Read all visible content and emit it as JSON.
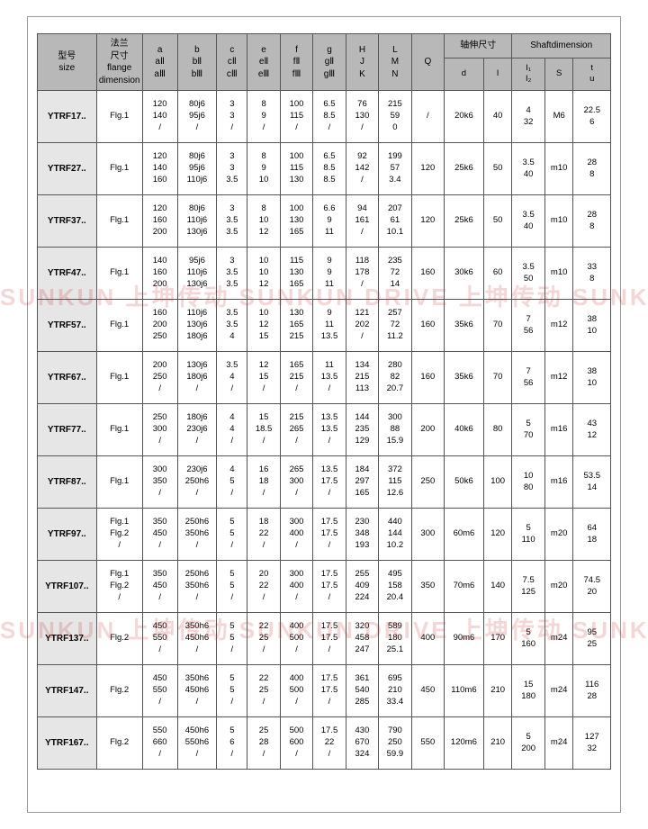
{
  "watermark": "SUNKUN 上坤传动 SUNKUN DRIVE 上坤传动 SUNKUN",
  "headers": {
    "size": "型号\nsize",
    "flange": "法兰\n尺寸\nflange\ndimension",
    "a": "a\naⅡ\naⅢ",
    "b": "b\nbⅡ\nbⅢ",
    "c": "c\ncⅡ\ncⅢ",
    "e": "e\neⅡ\neⅢ",
    "f": "f\nfⅡ\nfⅢ",
    "g": "g\ngⅡ\ngⅢ",
    "H": "H\nJ\nK",
    "L": "L\nM\nN",
    "Q": "Q",
    "shaft_ext": "轴伸尺寸",
    "shaft_dim": "Shaftdimension",
    "d": "d",
    "I": "I",
    "I12": "I₁\nI₂",
    "S": "S",
    "tu": "t\nu"
  },
  "rows": [
    {
      "size": "YTRF17..",
      "flange": "Flg.1",
      "a": "120\n140\n/",
      "b": "80j6\n95j6\n/",
      "c": "3\n3\n/",
      "e": "8\n9\n/",
      "f": "100\n115\n/",
      "g": "6.5\n8.5\n/",
      "H": "76\n130\n/",
      "L": "215\n59\n0",
      "Q": "/",
      "d": "20k6",
      "I": "40",
      "I12": "4\n32",
      "S": "M6",
      "tu": "22.5\n6"
    },
    {
      "size": "YTRF27..",
      "flange": "Flg.1",
      "a": "120\n140\n160",
      "b": "80j6\n95j6\n110j6",
      "c": "3\n3\n3.5",
      "e": "8\n9\n10",
      "f": "100\n115\n130",
      "g": "6.5\n8.5\n8.5",
      "H": "92\n142\n/",
      "L": "199\n57\n3.4",
      "Q": "120",
      "d": "25k6",
      "I": "50",
      "I12": "3.5\n40",
      "S": "m10",
      "tu": "28\n8"
    },
    {
      "size": "YTRF37..",
      "flange": "Flg.1",
      "a": "120\n160\n200",
      "b": "80j6\n110j6\n130j6",
      "c": "3\n3.5\n3.5",
      "e": "8\n10\n12",
      "f": "100\n130\n165",
      "g": "6.6\n9\n11",
      "H": "94\n161\n/",
      "L": "207\n61\n10.1",
      "Q": "120",
      "d": "25k6",
      "I": "50",
      "I12": "3.5\n40",
      "S": "m10",
      "tu": "28\n8"
    },
    {
      "size": "YTRF47..",
      "flange": "Flg.1",
      "a": "140\n160\n200",
      "b": "95j6\n110j6\n130j6",
      "c": "3\n3.5\n3.5",
      "e": "10\n10\n12",
      "f": "115\n130\n165",
      "g": "9\n9\n11",
      "H": "118\n178\n/",
      "L": "235\n72\n14",
      "Q": "160",
      "d": "30k6",
      "I": "60",
      "I12": "3.5\n50",
      "S": "m10",
      "tu": "33\n8"
    },
    {
      "size": "YTRF57..",
      "flange": "Flg.1",
      "a": "160\n200\n250",
      "b": "110j6\n130j6\n180j6",
      "c": "3.5\n3.5\n4",
      "e": "10\n12\n15",
      "f": "130\n165\n215",
      "g": "9\n11\n13.5",
      "H": "121\n202\n/",
      "L": "257\n72\n11.2",
      "Q": "160",
      "d": "35k6",
      "I": "70",
      "I12": "7\n56",
      "S": "m12",
      "tu": "38\n10"
    },
    {
      "size": "YTRF67..",
      "flange": "Flg.1",
      "a": "200\n250\n/",
      "b": "130j6\n180j6\n/",
      "c": "3.5\n4\n/",
      "e": "12\n15\n/",
      "f": "165\n215\n/",
      "g": "11\n13.5\n/",
      "H": "134\n215\n113",
      "L": "280\n82\n20.7",
      "Q": "160",
      "d": "35k6",
      "I": "70",
      "I12": "7\n56",
      "S": "m12",
      "tu": "38\n10"
    },
    {
      "size": "YTRF77..",
      "flange": "Flg.1",
      "a": "250\n300\n/",
      "b": "180j6\n230j6\n/",
      "c": "4\n4\n/",
      "e": "15\n18.5\n/",
      "f": "215\n265\n/",
      "g": "13.5\n13.5\n/",
      "H": "144\n235\n129",
      "L": "300\n88\n15.9",
      "Q": "200",
      "d": "40k6",
      "I": "80",
      "I12": "5\n70",
      "S": "m16",
      "tu": "43\n12"
    },
    {
      "size": "YTRF87..",
      "flange": "Flg.1",
      "a": "300\n350\n/",
      "b": "230j6\n250h6\n/",
      "c": "4\n5\n/",
      "e": "16\n18\n/",
      "f": "265\n300\n/",
      "g": "13.5\n17.5\n/",
      "H": "184\n297\n165",
      "L": "372\n115\n12.6",
      "Q": "250",
      "d": "50k6",
      "I": "100",
      "I12": "10\n80",
      "S": "m16",
      "tu": "53.5\n14"
    },
    {
      "size": "YTRF97..",
      "flange": "Flg.1\nFlg.2\n/",
      "a": "350\n450\n/",
      "b": "250h6\n350h6\n/",
      "c": "5\n5\n/",
      "e": "18\n22\n/",
      "f": "300\n400\n/",
      "g": "17.5\n17.5\n/",
      "H": "230\n348\n193",
      "L": "440\n144\n10.2",
      "Q": "300",
      "d": "60m6",
      "I": "120",
      "I12": "5\n110",
      "S": "m20",
      "tu": "64\n18"
    },
    {
      "size": "YTRF107..",
      "flange": "Flg.1\nFlg.2\n/",
      "a": "350\n450\n/",
      "b": "250h6\n350h6\n/",
      "c": "5\n5\n/",
      "e": "20\n22\n/",
      "f": "300\n400\n/",
      "g": "17.5\n17.5\n/",
      "H": "255\n409\n224",
      "L": "495\n158\n20.4",
      "Q": "350",
      "d": "70m6",
      "I": "140",
      "I12": "7.5\n125",
      "S": "m20",
      "tu": "74.5\n20"
    },
    {
      "size": "YTRF137..",
      "flange": "Flg.2",
      "a": "450\n550\n/",
      "b": "350h6\n450h6\n/",
      "c": "5\n5\n/",
      "e": "22\n25\n/",
      "f": "400\n500\n/",
      "g": "17.5\n17.5\n/",
      "H": "320\n458\n247",
      "L": "589\n180\n25.1",
      "Q": "400",
      "d": "90m6",
      "I": "170",
      "I12": "5\n160",
      "S": "m24",
      "tu": "95\n25"
    },
    {
      "size": "YTRF147..",
      "flange": "Flg.2",
      "a": "450\n550\n/",
      "b": "350h6\n450h6\n/",
      "c": "5\n5\n/",
      "e": "22\n25\n/",
      "f": "400\n500\n/",
      "g": "17.5\n17.5\n/",
      "H": "361\n540\n285",
      "L": "695\n210\n33.4",
      "Q": "450",
      "d": "110m6",
      "I": "210",
      "I12": "15\n180",
      "S": "m24",
      "tu": "116\n28"
    },
    {
      "size": "YTRF167..",
      "flange": "Flg.2",
      "a": "550\n660\n/",
      "b": "450h6\n550h6\n/",
      "c": "5\n6\n/",
      "e": "25\n28\n/",
      "f": "500\n600\n/",
      "g": "17.5\n22\n/",
      "H": "430\n670\n324",
      "L": "790\n250\n59.9",
      "Q": "550",
      "d": "120m6",
      "I": "210",
      "I12": "5\n200",
      "S": "m24",
      "tu": "127\n32"
    }
  ],
  "col_widths": [
    "54",
    "42",
    "32",
    "36",
    "28",
    "30",
    "30",
    "30",
    "30",
    "30",
    "30",
    "36",
    "26",
    "30",
    "26",
    "34"
  ]
}
